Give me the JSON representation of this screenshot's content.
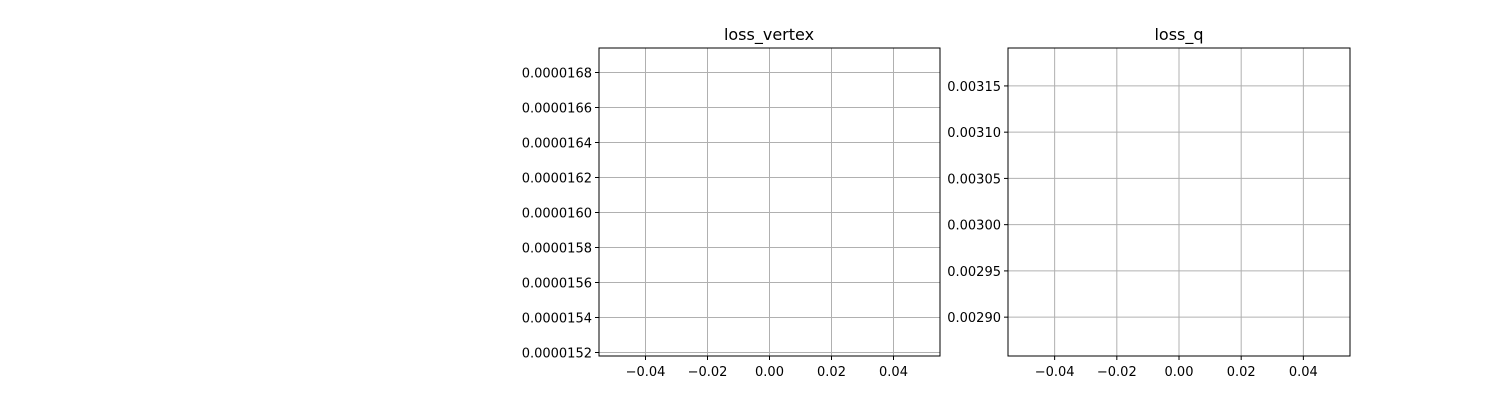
{
  "chart_data": [
    {
      "type": "line",
      "title": "loss_vertex",
      "xlabel": "",
      "ylabel": "",
      "grid": true,
      "xlim": [
        -0.055,
        0.055
      ],
      "ylim": [
        1.518e-05,
        1.694e-05
      ],
      "x_ticks": [
        -0.04,
        -0.02,
        0.0,
        0.02,
        0.04
      ],
      "x_tick_labels": [
        "−0.04",
        "−0.02",
        "0.00",
        "0.02",
        "0.04"
      ],
      "y_ticks": [
        1.52e-05,
        1.54e-05,
        1.56e-05,
        1.58e-05,
        1.6e-05,
        1.62e-05,
        1.64e-05,
        1.66e-05,
        1.68e-05
      ],
      "y_tick_labels": [
        "0.0000152",
        "0.0000154",
        "0.0000156",
        "0.0000158",
        "0.0000160",
        "0.0000162",
        "0.0000164",
        "0.0000166",
        "0.0000168"
      ],
      "series": []
    },
    {
      "type": "line",
      "title": "loss_q",
      "xlabel": "",
      "ylabel": "",
      "grid": true,
      "xlim": [
        -0.055,
        0.055
      ],
      "ylim": [
        0.002858,
        0.003191
      ],
      "x_ticks": [
        -0.04,
        -0.02,
        0.0,
        0.02,
        0.04
      ],
      "x_tick_labels": [
        "−0.04",
        "−0.02",
        "0.00",
        "0.02",
        "0.04"
      ],
      "y_ticks": [
        0.0029,
        0.00295,
        0.003,
        0.00305,
        0.0031,
        0.00315
      ],
      "y_tick_labels": [
        "0.00290",
        "0.00295",
        "0.00300",
        "0.00305",
        "0.00310",
        "0.00315"
      ],
      "series": []
    }
  ]
}
